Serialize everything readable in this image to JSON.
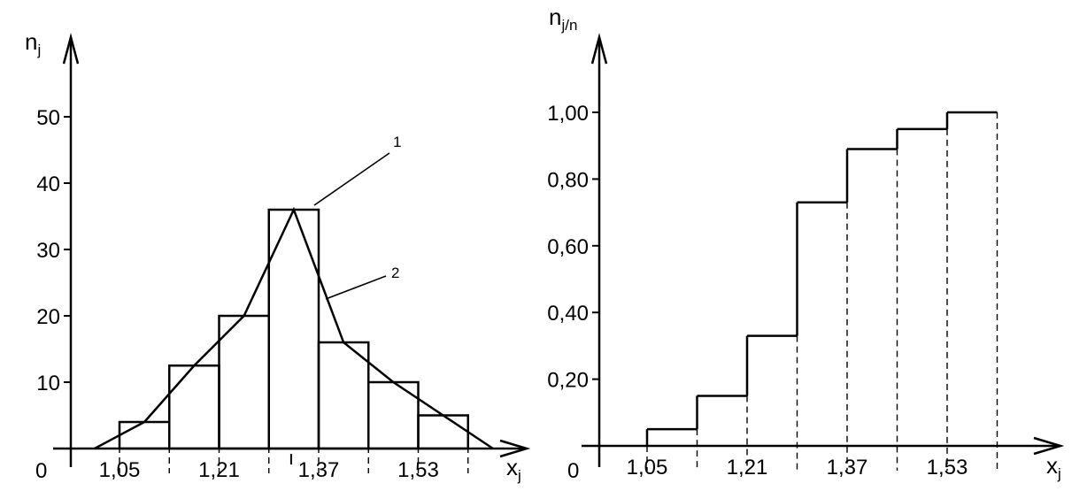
{
  "chart_data": [
    {
      "type": "bar",
      "variant": "histogram-with-polygon",
      "ylabel": "n",
      "ylabel_sub": "j",
      "xlabel": "x",
      "xlabel_sub": "j",
      "origin_label": "0",
      "xlim": [
        0.97,
        1.67
      ],
      "ylim": [
        0,
        55
      ],
      "x_ticks": [
        "1,05",
        "1,21",
        "1,37",
        "1,53"
      ],
      "x_tick_values": [
        1.05,
        1.21,
        1.37,
        1.53
      ],
      "y_ticks": [
        "10",
        "20",
        "30",
        "40",
        "50"
      ],
      "y_tick_values": [
        10,
        20,
        30,
        40,
        50
      ],
      "bins": [
        {
          "from": 1.05,
          "to": 1.13,
          "value": 4
        },
        {
          "from": 1.13,
          "to": 1.21,
          "value": 12.5
        },
        {
          "from": 1.21,
          "to": 1.29,
          "value": 20
        },
        {
          "from": 1.29,
          "to": 1.37,
          "value": 36
        },
        {
          "from": 1.37,
          "to": 1.45,
          "value": 16
        },
        {
          "from": 1.45,
          "to": 1.53,
          "value": 10
        },
        {
          "from": 1.53,
          "to": 1.61,
          "value": 5
        }
      ],
      "polygon": {
        "x": [
          1.01,
          1.09,
          1.17,
          1.25,
          1.33,
          1.41,
          1.49,
          1.57,
          1.65
        ],
        "y": [
          0,
          4,
          12.5,
          20,
          36,
          16,
          10,
          5,
          0
        ]
      },
      "mean_marker": {
        "x": 1.33,
        "label": "ı"
      },
      "annotations": [
        {
          "label": "1",
          "points_to": "histogram"
        },
        {
          "label": "2",
          "points_to": "polygon"
        }
      ]
    },
    {
      "type": "step",
      "ylabel": "n",
      "ylabel_sub": "j/n",
      "xlabel": "x",
      "xlabel_sub": "j",
      "origin_label": "0",
      "xlim": [
        0.97,
        1.67
      ],
      "ylim": [
        0,
        1.1
      ],
      "x_ticks": [
        "1,05",
        "1,21",
        "1,37",
        "1,53"
      ],
      "x_tick_values": [
        1.05,
        1.21,
        1.37,
        1.53
      ],
      "y_ticks": [
        "0,20",
        "0,40",
        "0,60",
        "0,80",
        "1,00"
      ],
      "y_tick_values": [
        0.2,
        0.4,
        0.6,
        0.8,
        1.0
      ],
      "steps": [
        {
          "from": 1.05,
          "to": 1.13,
          "value": 0.05
        },
        {
          "from": 1.13,
          "to": 1.21,
          "value": 0.15
        },
        {
          "from": 1.21,
          "to": 1.29,
          "value": 0.33
        },
        {
          "from": 1.29,
          "to": 1.37,
          "value": 0.73
        },
        {
          "from": 1.37,
          "to": 1.45,
          "value": 0.89
        },
        {
          "from": 1.45,
          "to": 1.53,
          "value": 0.95
        },
        {
          "from": 1.53,
          "to": 1.61,
          "value": 1.0
        }
      ]
    }
  ]
}
